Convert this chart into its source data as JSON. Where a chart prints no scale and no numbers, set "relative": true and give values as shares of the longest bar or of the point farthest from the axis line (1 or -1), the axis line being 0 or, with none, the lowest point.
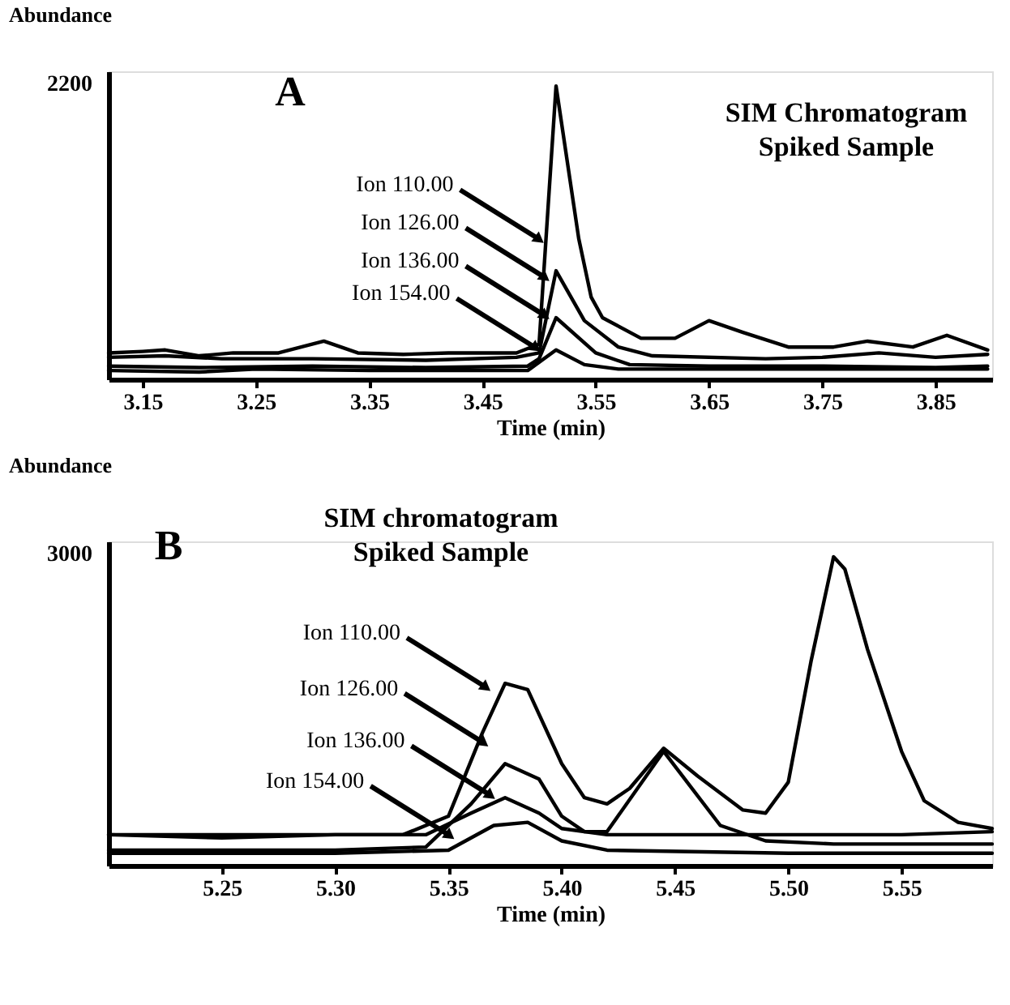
{
  "chart_data": [
    {
      "type": "line",
      "relative": true,
      "title": "A",
      "subtitle": "SIM Chromatogram\nSpiked  Sample",
      "xlabel": "Time (min)",
      "ylabel": "Abundance",
      "xlim": [
        3.12,
        3.9
      ],
      "xticks": [
        3.15,
        3.25,
        3.35,
        3.45,
        3.55,
        3.65,
        3.75,
        3.85
      ],
      "series": [
        {
          "color": "#000000",
          "x": [
            3.12,
            3.15,
            3.17,
            3.2,
            3.23,
            3.27,
            3.31,
            3.34,
            3.38,
            3.42,
            3.46,
            3.48,
            3.5,
            3.515,
            3.535,
            3.546,
            3.556,
            3.59,
            3.62,
            3.65,
            3.68,
            3.72,
            3.76,
            3.79,
            3.83,
            3.86,
            3.896
          ],
          "values": [
            0.09,
            0.095,
            0.1,
            0.08,
            0.09,
            0.09,
            0.13,
            0.09,
            0.085,
            0.09,
            0.09,
            0.09,
            0.12,
            1.0,
            0.48,
            0.28,
            0.21,
            0.14,
            0.14,
            0.2,
            0.16,
            0.11,
            0.11,
            0.13,
            0.11,
            0.15,
            0.1
          ]
        },
        {
          "color": "#000000",
          "x": [
            3.12,
            3.17,
            3.22,
            3.3,
            3.4,
            3.48,
            3.5,
            3.515,
            3.54,
            3.57,
            3.6,
            3.7,
            3.75,
            3.8,
            3.85,
            3.896
          ],
          "values": [
            0.075,
            0.08,
            0.07,
            0.07,
            0.065,
            0.075,
            0.09,
            0.37,
            0.2,
            0.11,
            0.08,
            0.07,
            0.075,
            0.09,
            0.075,
            0.085
          ]
        },
        {
          "color": "#000000",
          "x": [
            3.12,
            3.2,
            3.3,
            3.4,
            3.49,
            3.5,
            3.515,
            3.55,
            3.58,
            3.65,
            3.75,
            3.85,
            3.896
          ],
          "values": [
            0.045,
            0.04,
            0.045,
            0.04,
            0.045,
            0.07,
            0.21,
            0.09,
            0.05,
            0.045,
            0.045,
            0.04,
            0.045
          ]
        },
        {
          "color": "#000000",
          "x": [
            3.12,
            3.2,
            3.25,
            3.35,
            3.45,
            3.49,
            3.515,
            3.54,
            3.57,
            3.7,
            3.896
          ],
          "values": [
            0.03,
            0.025,
            0.035,
            0.03,
            0.03,
            0.03,
            0.1,
            0.05,
            0.035,
            0.035,
            0.035
          ]
        }
      ],
      "annotations": [
        "2200",
        {
          "text": "Ion 110.00",
          "x": 3.499,
          "y": 0.48
        },
        {
          "text": "Ion 126.00",
          "x": 3.504,
          "y": 0.35
        },
        {
          "text": "Ion 136.00",
          "x": 3.504,
          "y": 0.22
        },
        {
          "text": "Ion 154.00",
          "x": 3.496,
          "y": 0.11
        }
      ]
    },
    {
      "type": "line",
      "relative": true,
      "title": "B",
      "subtitle": "SIM chromatogram\nSpiked  Sample",
      "xlabel": "Time (min)",
      "ylabel": "Abundance",
      "xlim": [
        5.2,
        5.59
      ],
      "xticks": [
        5.25,
        {
          "value": 5.3,
          "label": "5.30"
        },
        5.35,
        {
          "value": 5.4,
          "label": "5.40"
        },
        5.45,
        {
          "value": 5.5,
          "label": "5.50"
        },
        5.55
      ],
      "series": [
        {
          "color": "#000000",
          "x": [
            5.2,
            5.25,
            5.3,
            5.33,
            5.35,
            5.365,
            5.375,
            5.385,
            5.4,
            5.41,
            5.42,
            5.43,
            5.445,
            5.46,
            5.48,
            5.49,
            5.5,
            5.51,
            5.52,
            5.525,
            5.535,
            5.55,
            5.56,
            5.575,
            5.59
          ],
          "values": [
            0.1,
            0.1,
            0.1,
            0.1,
            0.16,
            0.43,
            0.59,
            0.57,
            0.33,
            0.22,
            0.2,
            0.25,
            0.38,
            0.29,
            0.18,
            0.17,
            0.27,
            0.66,
            1.0,
            0.96,
            0.7,
            0.37,
            0.21,
            0.14,
            0.12
          ]
        },
        {
          "color": "#000000",
          "x": [
            5.2,
            5.25,
            5.3,
            5.34,
            5.36,
            5.375,
            5.39,
            5.4,
            5.41,
            5.42,
            5.445,
            5.47,
            5.49,
            5.52,
            5.59
          ],
          "values": [
            0.05,
            0.05,
            0.05,
            0.06,
            0.2,
            0.33,
            0.28,
            0.16,
            0.11,
            0.11,
            0.37,
            0.13,
            0.08,
            0.07,
            0.07
          ]
        },
        {
          "color": "#000000",
          "x": [
            5.2,
            5.25,
            5.3,
            5.34,
            5.36,
            5.375,
            5.39,
            5.4,
            5.42,
            5.47,
            5.5,
            5.55,
            5.59
          ],
          "values": [
            0.1,
            0.09,
            0.1,
            0.1,
            0.17,
            0.22,
            0.17,
            0.12,
            0.1,
            0.1,
            0.1,
            0.1,
            0.11
          ]
        },
        {
          "color": "#000000",
          "x": [
            5.2,
            5.3,
            5.35,
            5.37,
            5.385,
            5.4,
            5.42,
            5.5,
            5.59
          ],
          "values": [
            0.04,
            0.04,
            0.05,
            0.13,
            0.14,
            0.08,
            0.05,
            0.04,
            0.04
          ]
        }
      ],
      "annotations": [
        "3000",
        {
          "text": "Ion 110.00",
          "x": 5.366,
          "y": 0.58
        },
        {
          "text": "Ion 126.00",
          "x": 5.365,
          "y": 0.4
        },
        {
          "text": "Ion 136.00",
          "x": 5.368,
          "y": 0.23
        },
        {
          "text": "Ion 154.00",
          "x": 5.35,
          "y": 0.1
        }
      ]
    }
  ]
}
